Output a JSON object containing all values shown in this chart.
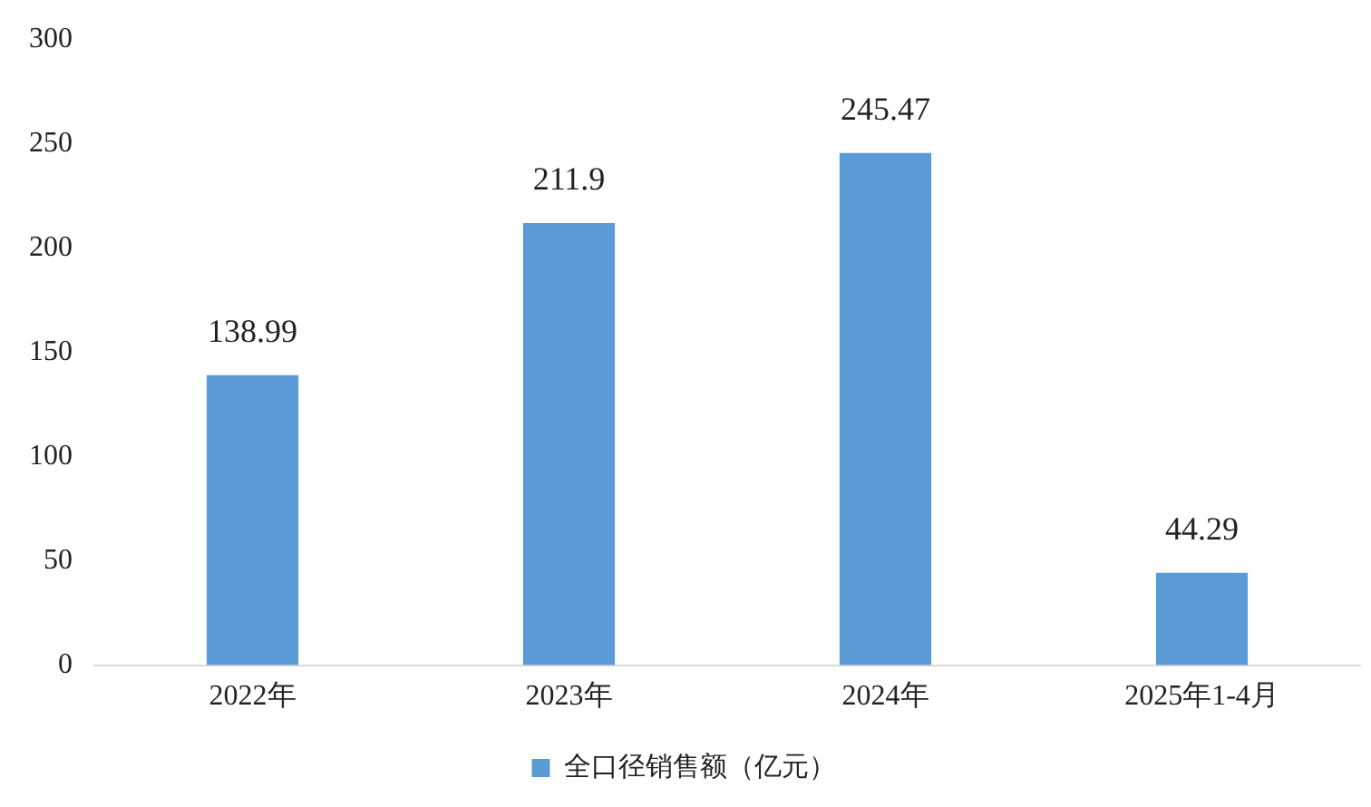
{
  "chart_data": {
    "type": "bar",
    "categories": [
      "2022年",
      "2023年",
      "2024年",
      "2025年1-4月"
    ],
    "series": [
      {
        "name": "全口径销售额（亿元）",
        "color": "#5b9bd5",
        "values": [
          138.99,
          211.9,
          245.47,
          44.29
        ]
      }
    ],
    "ylim": [
      0,
      300
    ],
    "yticks": [
      0,
      50,
      100,
      150,
      200,
      250,
      300
    ],
    "grid": false,
    "legend": "bottom",
    "data_labels": true
  }
}
